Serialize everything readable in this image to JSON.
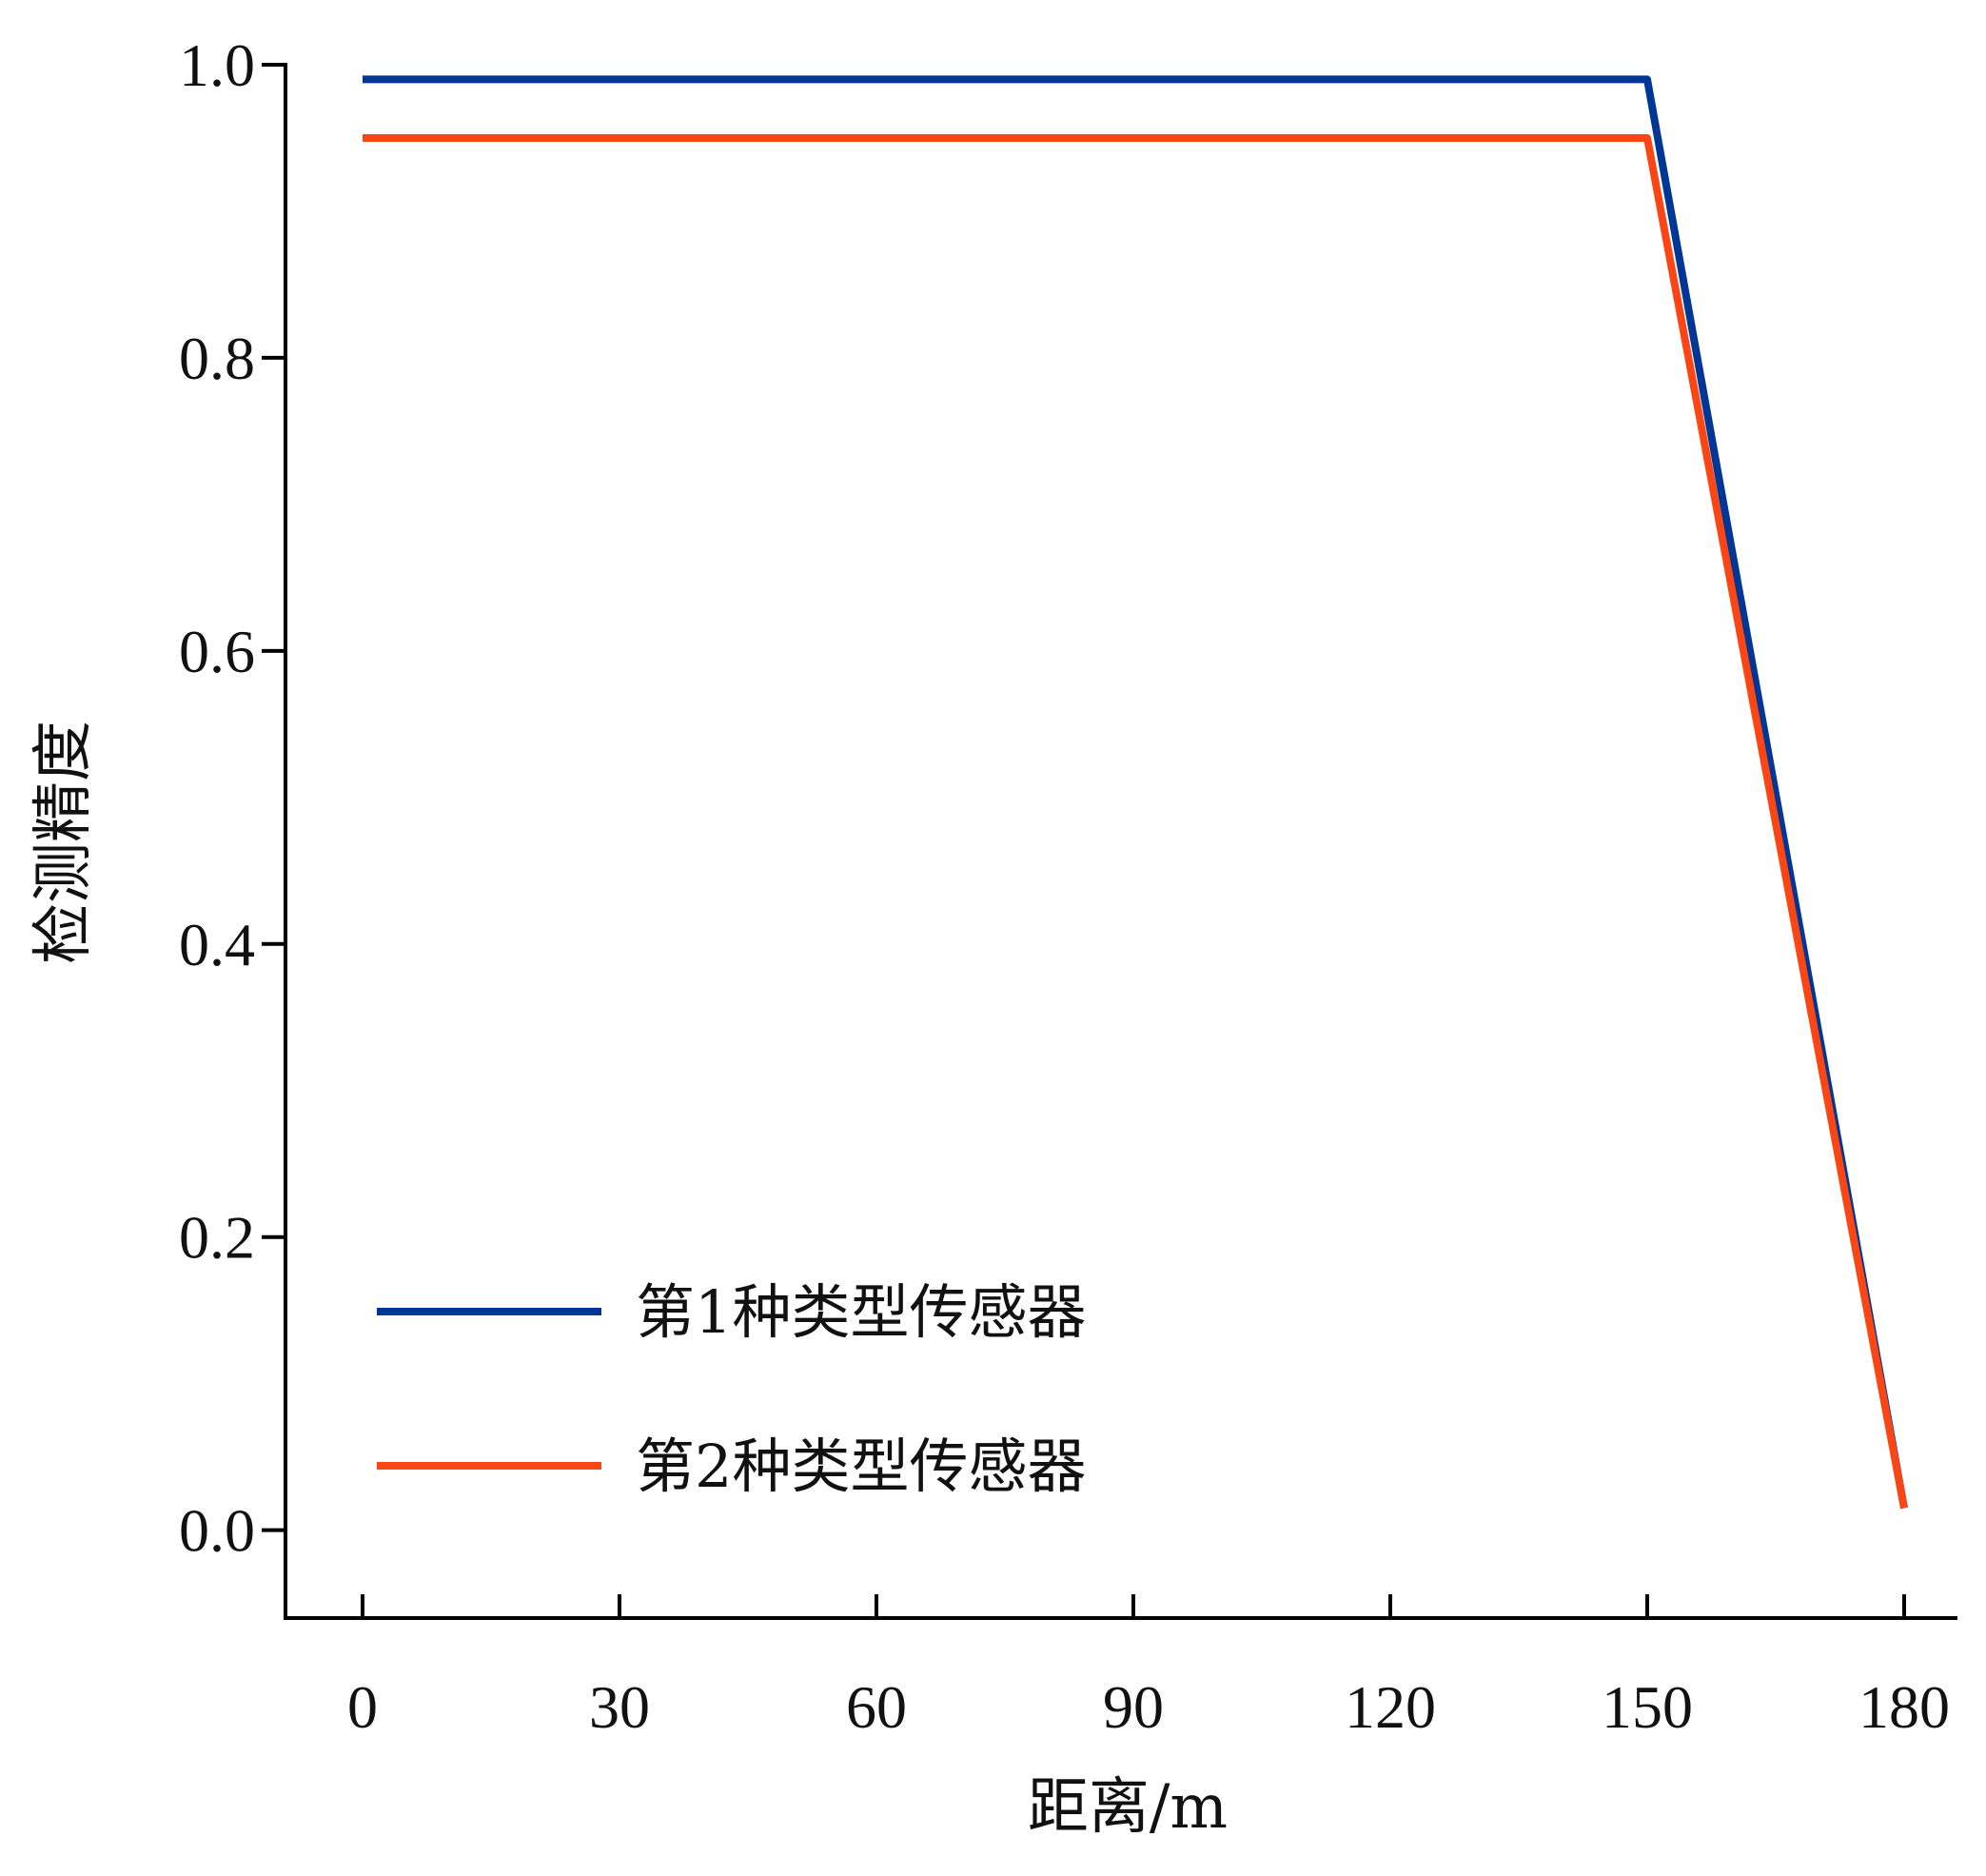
{
  "chart_data": {
    "type": "line",
    "xlabel": "距离/m",
    "ylabel": "检测精度",
    "xlim": [
      -9,
      186
    ],
    "ylim": [
      -0.06,
      1.0
    ],
    "xticks": [
      0,
      30,
      60,
      90,
      120,
      150,
      180
    ],
    "yticks": [
      0.0,
      0.2,
      0.4,
      0.6,
      0.8,
      1.0
    ],
    "xtick_labels": [
      "0",
      "30",
      "60",
      "90",
      "120",
      "150",
      "180"
    ],
    "ytick_labels": [
      "0.0",
      "0.2",
      "0.4",
      "0.6",
      "0.8",
      "1.0"
    ],
    "grid": false,
    "legend_position": "lower-left",
    "series": [
      {
        "name": "第1种类型传感器",
        "color": "#003796",
        "x": [
          0,
          150,
          180
        ],
        "y": [
          0.99,
          0.99,
          0.015
        ]
      },
      {
        "name": "第2种类型传感器",
        "color": "#fa4614",
        "x": [
          0,
          150,
          180
        ],
        "y": [
          0.95,
          0.95,
          0.015
        ]
      }
    ]
  }
}
